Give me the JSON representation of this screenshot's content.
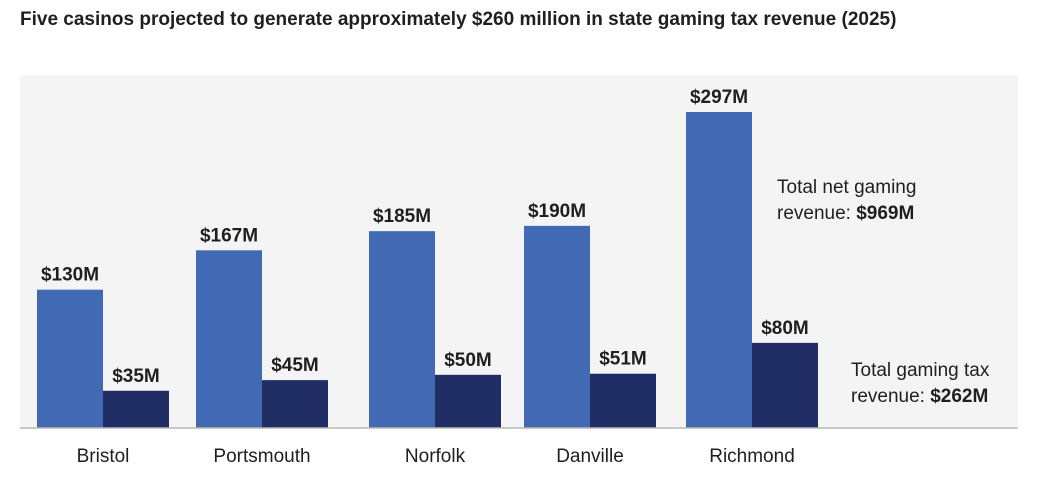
{
  "title": "Five casinos projected to generate approximately $260 million in state gaming tax revenue (2025)",
  "chart_data": {
    "type": "bar",
    "categories": [
      "Bristol",
      "Portsmouth",
      "Norfolk",
      "Danville",
      "Richmond"
    ],
    "series": [
      {
        "name": "Total net gaming revenue",
        "values": [
          130,
          167,
          185,
          190,
          297
        ],
        "labels": [
          "$130M",
          "$167M",
          "$185M",
          "$190M",
          "$297M"
        ],
        "color": "#4169b4"
      },
      {
        "name": "Total gaming tax revenue",
        "values": [
          35,
          45,
          50,
          51,
          80
        ],
        "labels": [
          "$35M",
          "$45M",
          "$50M",
          "$51M",
          "$80M"
        ],
        "color": "#212e66"
      }
    ],
    "ylim": [
      0,
      300
    ],
    "grid": false
  },
  "annotations": {
    "net_revenue_line1": "Total net gaming",
    "net_revenue_line2_prefix": "revenue: ",
    "net_revenue_total": "$969M",
    "tax_revenue_line1": "Total gaming tax",
    "tax_revenue_line2_prefix": "revenue: ",
    "tax_revenue_total": "$262M"
  },
  "colors": {
    "plot_background": "#f4f4f4",
    "axis": "#b8b8b8",
    "text": "#1f1f1f"
  }
}
